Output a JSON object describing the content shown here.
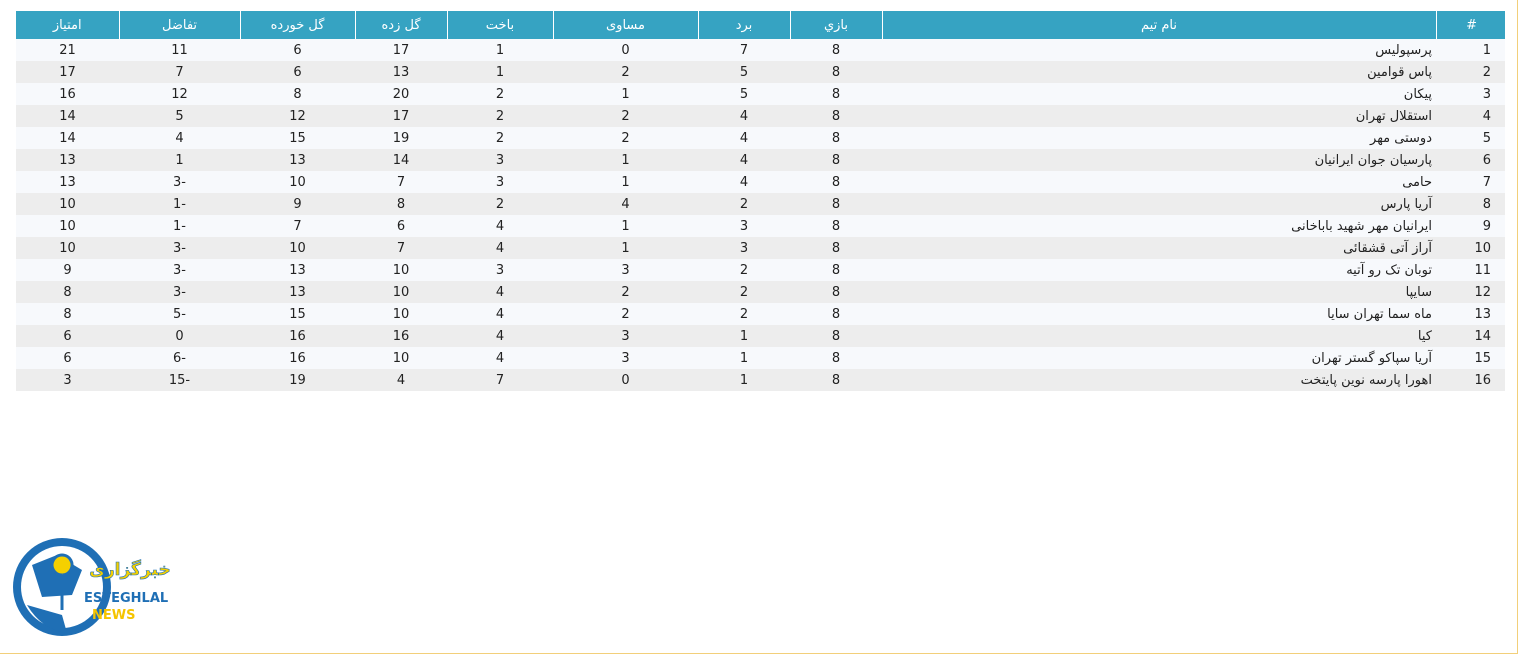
{
  "table": {
    "headers": [
      "#",
      "نام تیم",
      "بازي",
      "برد",
      "مساوی",
      "باخت",
      "گل زده",
      "گل خورده",
      "تفاضل",
      "امتیاز"
    ],
    "rows": [
      [
        1,
        "پرسپولیس",
        8,
        7,
        0,
        1,
        17,
        6,
        11,
        21
      ],
      [
        2,
        "پاس قوامین",
        8,
        5,
        2,
        1,
        13,
        6,
        7,
        17
      ],
      [
        3,
        "پیکان",
        8,
        5,
        1,
        2,
        20,
        8,
        12,
        16
      ],
      [
        4,
        "استقلال تهران",
        8,
        4,
        2,
        2,
        17,
        12,
        5,
        14
      ],
      [
        5,
        "دوستی مهر",
        8,
        4,
        2,
        2,
        19,
        15,
        4,
        14
      ],
      [
        6,
        "پارسیان جوان ایرانیان",
        8,
        4,
        1,
        3,
        14,
        13,
        1,
        13
      ],
      [
        7,
        "حامی",
        8,
        4,
        1,
        3,
        7,
        10,
        -3,
        13
      ],
      [
        8,
        "آریا پارس",
        8,
        2,
        4,
        2,
        8,
        9,
        -1,
        10
      ],
      [
        9,
        "ایرانیان مهر شهید باباخانی",
        8,
        3,
        1,
        4,
        6,
        7,
        -1,
        10
      ],
      [
        10,
        "آراز آتی قشقائی",
        8,
        3,
        1,
        4,
        7,
        10,
        -3,
        10
      ],
      [
        11,
        "توبان تک رو آتیه",
        8,
        2,
        3,
        3,
        10,
        13,
        -3,
        9
      ],
      [
        12,
        "سایپا",
        8,
        2,
        2,
        4,
        10,
        13,
        -3,
        8
      ],
      [
        13,
        "ماه سما تهران سایا",
        8,
        2,
        2,
        4,
        10,
        15,
        -5,
        8
      ],
      [
        14,
        "کیا",
        8,
        1,
        3,
        4,
        16,
        16,
        0,
        6
      ],
      [
        15,
        "آریا سپاکو گستر تهران",
        8,
        1,
        3,
        4,
        10,
        16,
        -6,
        6
      ],
      [
        16,
        "اهورا پارسه نوین پایتخت",
        8,
        1,
        0,
        7,
        4,
        19,
        -15,
        3
      ]
    ]
  },
  "logo": {
    "persian": "خبرگزاری",
    "line1": "ESTEGHLAL",
    "line2": "NEWS"
  }
}
